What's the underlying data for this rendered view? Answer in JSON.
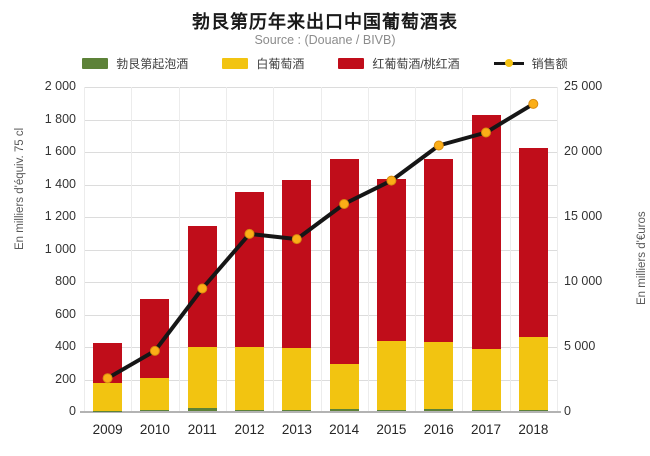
{
  "title": "勃艮第历年来出口中国葡萄酒表",
  "subtitle": "Source : (Douane / BIVB)",
  "colors": {
    "sparkling_green": "#5d8238",
    "white_wine_yellow": "#f2c411",
    "red_wine_red": "#c00d1a",
    "sales_line_black": "#161616",
    "sales_marker_orange": "#fbae17",
    "grid_gray": "#dcdcdc"
  },
  "legend": [
    {
      "label": "勃艮第起泡酒",
      "type": "swatch",
      "color": "#5d8238"
    },
    {
      "label": "白葡萄酒",
      "type": "swatch",
      "color": "#f2c411"
    },
    {
      "label": "红葡萄酒/桃红酒",
      "type": "swatch",
      "color": "#c00d1a"
    },
    {
      "label": "销售额",
      "type": "line",
      "color": "#161616",
      "marker_color": "#f5c211"
    }
  ],
  "chart_data": {
    "type": "bar",
    "subtype": "stacked-bars-with-line-overlay",
    "title": "勃艮第历年来出口中国葡萄酒表",
    "subtitle": "Source : (Douane / BIVB)",
    "categories": [
      "2009",
      "2010",
      "2011",
      "2012",
      "2013",
      "2014",
      "2015",
      "2016",
      "2017",
      "2018"
    ],
    "series": [
      {
        "name": "勃艮第起泡酒",
        "type": "bar",
        "axis": "left",
        "color": "#5d8238",
        "values": [
          3,
          4,
          18,
          6,
          5,
          12,
          8,
          12,
          5,
          8
        ]
      },
      {
        "name": "白葡萄酒",
        "type": "bar",
        "axis": "left",
        "color": "#f2c411",
        "values": [
          170,
          200,
          375,
          390,
          380,
          275,
          425,
          415,
          375,
          450
        ]
      },
      {
        "name": "红葡萄酒/桃红酒",
        "type": "bar",
        "axis": "left",
        "color": "#c00d1a",
        "values": [
          247,
          486,
          747,
          954,
          1035,
          1263,
          992,
          1123,
          1440,
          1162
        ]
      },
      {
        "name": "销售额",
        "type": "line",
        "axis": "right",
        "color": "#161616",
        "marker_color": "#fbae17",
        "values": [
          2600,
          4700,
          9500,
          13700,
          13300,
          16000,
          17800,
          20500,
          21500,
          23700
        ]
      }
    ],
    "bar_totals": [
      420,
      690,
      1140,
      1350,
      1420,
      1550,
      1425,
      1550,
      1820,
      1620
    ],
    "left_axis": {
      "label": "En milliers d'équiv. 75 cl",
      "min": 0,
      "max": 2000,
      "step": 200,
      "ticks": [
        "0",
        "200",
        "400",
        "600",
        "800",
        "1 000",
        "1 200",
        "1 400",
        "1 600",
        "1 800",
        "2 000"
      ]
    },
    "right_axis": {
      "label": "En milliers d'€uros",
      "min": 0,
      "max": 25000,
      "step": 5000,
      "ticks": [
        "0",
        "5 000",
        "10 000",
        "15 000",
        "20 000",
        "25 000"
      ]
    },
    "grid": true,
    "legend_position": "top"
  }
}
